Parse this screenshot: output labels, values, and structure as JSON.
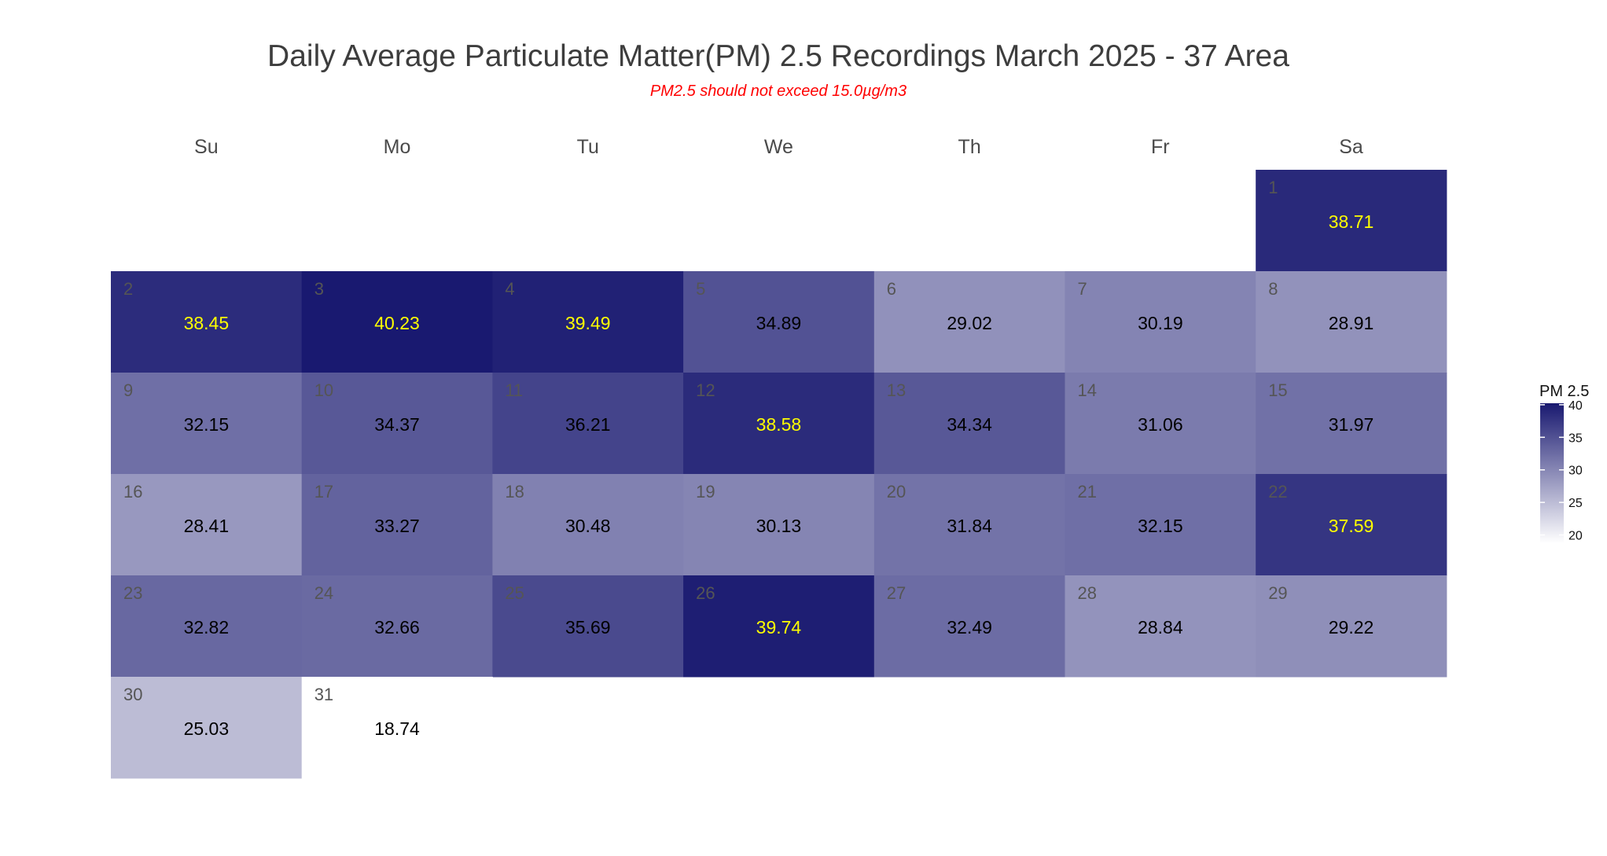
{
  "title": "Daily Average Particulate Matter(PM) 2.5 Recordings March 2025 -  37 Area",
  "subtitle": "PM2.5 should not exceed 15.0µg/m3",
  "colors": {
    "subtitle": "#ff0000",
    "low": "#ffffff",
    "high": "#191970",
    "dark_value_text": "#000000",
    "light_value_text": "#ffff00"
  },
  "chart_data": {
    "type": "heatmap",
    "title": "Daily Average Particulate Matter(PM) 2.5 Recordings March 2025 -  37 Area",
    "subtitle": "PM2.5 should not exceed 15.0µg/m3",
    "weekdays": [
      "Su",
      "Mo",
      "Tu",
      "We",
      "Th",
      "Fr",
      "Sa"
    ],
    "days": [
      {
        "day": "1",
        "value": 38.71,
        "label": "38.71"
      },
      {
        "day": "2",
        "value": 38.45,
        "label": "38.45"
      },
      {
        "day": "3",
        "value": 40.23,
        "label": "40.23"
      },
      {
        "day": "4",
        "value": 39.49,
        "label": "39.49"
      },
      {
        "day": "5",
        "value": 34.89,
        "label": "34.89"
      },
      {
        "day": "6",
        "value": 29.02,
        "label": "29.02"
      },
      {
        "day": "7",
        "value": 30.19,
        "label": "30.19"
      },
      {
        "day": "8",
        "value": 28.91,
        "label": "28.91"
      },
      {
        "day": "9",
        "value": 32.15,
        "label": "32.15"
      },
      {
        "day": "10",
        "value": 34.37,
        "label": "34.37"
      },
      {
        "day": "11",
        "value": 36.21,
        "label": "36.21"
      },
      {
        "day": "12",
        "value": 38.58,
        "label": "38.58"
      },
      {
        "day": "13",
        "value": 34.34,
        "label": "34.34"
      },
      {
        "day": "14",
        "value": 31.06,
        "label": "31.06"
      },
      {
        "day": "15",
        "value": 31.97,
        "label": "31.97"
      },
      {
        "day": "16",
        "value": 28.41,
        "label": "28.41"
      },
      {
        "day": "17",
        "value": 33.27,
        "label": "33.27"
      },
      {
        "day": "18",
        "value": 30.48,
        "label": "30.48"
      },
      {
        "day": "19",
        "value": 30.13,
        "label": "30.13"
      },
      {
        "day": "20",
        "value": 31.84,
        "label": "31.84"
      },
      {
        "day": "21",
        "value": 32.15,
        "label": "32.15"
      },
      {
        "day": "22",
        "value": 37.59,
        "label": "37.59"
      },
      {
        "day": "23",
        "value": 32.82,
        "label": "32.82"
      },
      {
        "day": "24",
        "value": 32.66,
        "label": "32.66"
      },
      {
        "day": "25",
        "value": 35.69,
        "label": "35.69"
      },
      {
        "day": "26",
        "value": 39.74,
        "label": "39.74"
      },
      {
        "day": "27",
        "value": 32.49,
        "label": "32.49"
      },
      {
        "day": "28",
        "value": 28.84,
        "label": "28.84"
      },
      {
        "day": "29",
        "value": 29.22,
        "label": "29.22"
      },
      {
        "day": "30",
        "value": 25.03,
        "label": "25.03"
      },
      {
        "day": "31",
        "value": 18.74,
        "label": "18.74"
      }
    ],
    "first_weekday_index": 6,
    "highlight_threshold": 37,
    "legend": {
      "title": "PM 2.5",
      "range": [
        18.74,
        40.23
      ],
      "ticks": [
        "20",
        "25",
        "30",
        "35",
        "40"
      ]
    }
  }
}
